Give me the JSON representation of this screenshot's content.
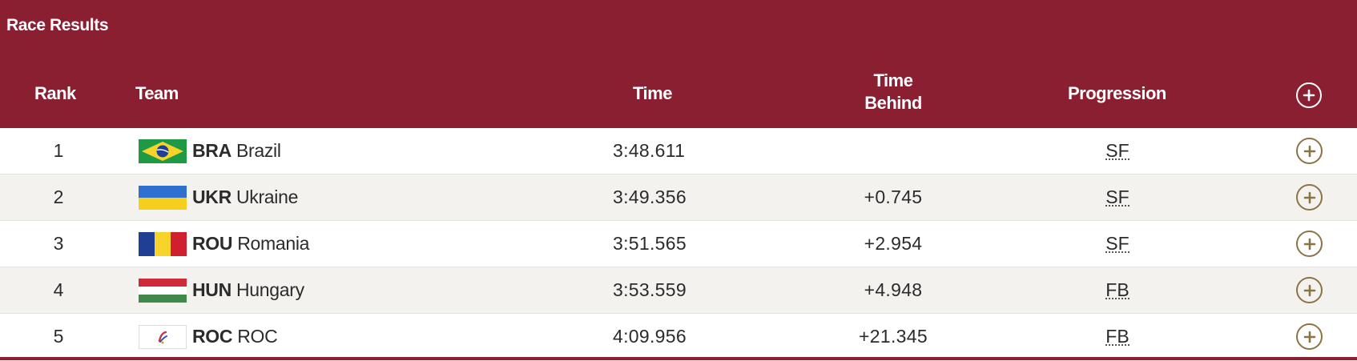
{
  "widget": {
    "title": "Race Results"
  },
  "columns": {
    "rank": "Rank",
    "team": "Team",
    "time": "Time",
    "time_behind_line1": "Time",
    "time_behind_line2": "Behind",
    "progression": "Progression"
  },
  "icons": {
    "expand": "plus-circle-icon"
  },
  "colors": {
    "header_bg": "#8a1f32",
    "accent_gold": "#8b7344",
    "row_alt": "#f4f2ef"
  },
  "rows": [
    {
      "rank": "1",
      "code": "BRA",
      "name": "Brazil",
      "time": "3:48.611",
      "behind": "",
      "progression": "SF"
    },
    {
      "rank": "2",
      "code": "UKR",
      "name": "Ukraine",
      "time": "3:49.356",
      "behind": "+0.745",
      "progression": "SF"
    },
    {
      "rank": "3",
      "code": "ROU",
      "name": "Romania",
      "time": "3:51.565",
      "behind": "+2.954",
      "progression": "SF"
    },
    {
      "rank": "4",
      "code": "HUN",
      "name": "Hungary",
      "time": "3:53.559",
      "behind": "+4.948",
      "progression": "FB"
    },
    {
      "rank": "5",
      "code": "ROC",
      "name": "ROC",
      "time": "4:09.956",
      "behind": "+21.345",
      "progression": "FB"
    }
  ]
}
